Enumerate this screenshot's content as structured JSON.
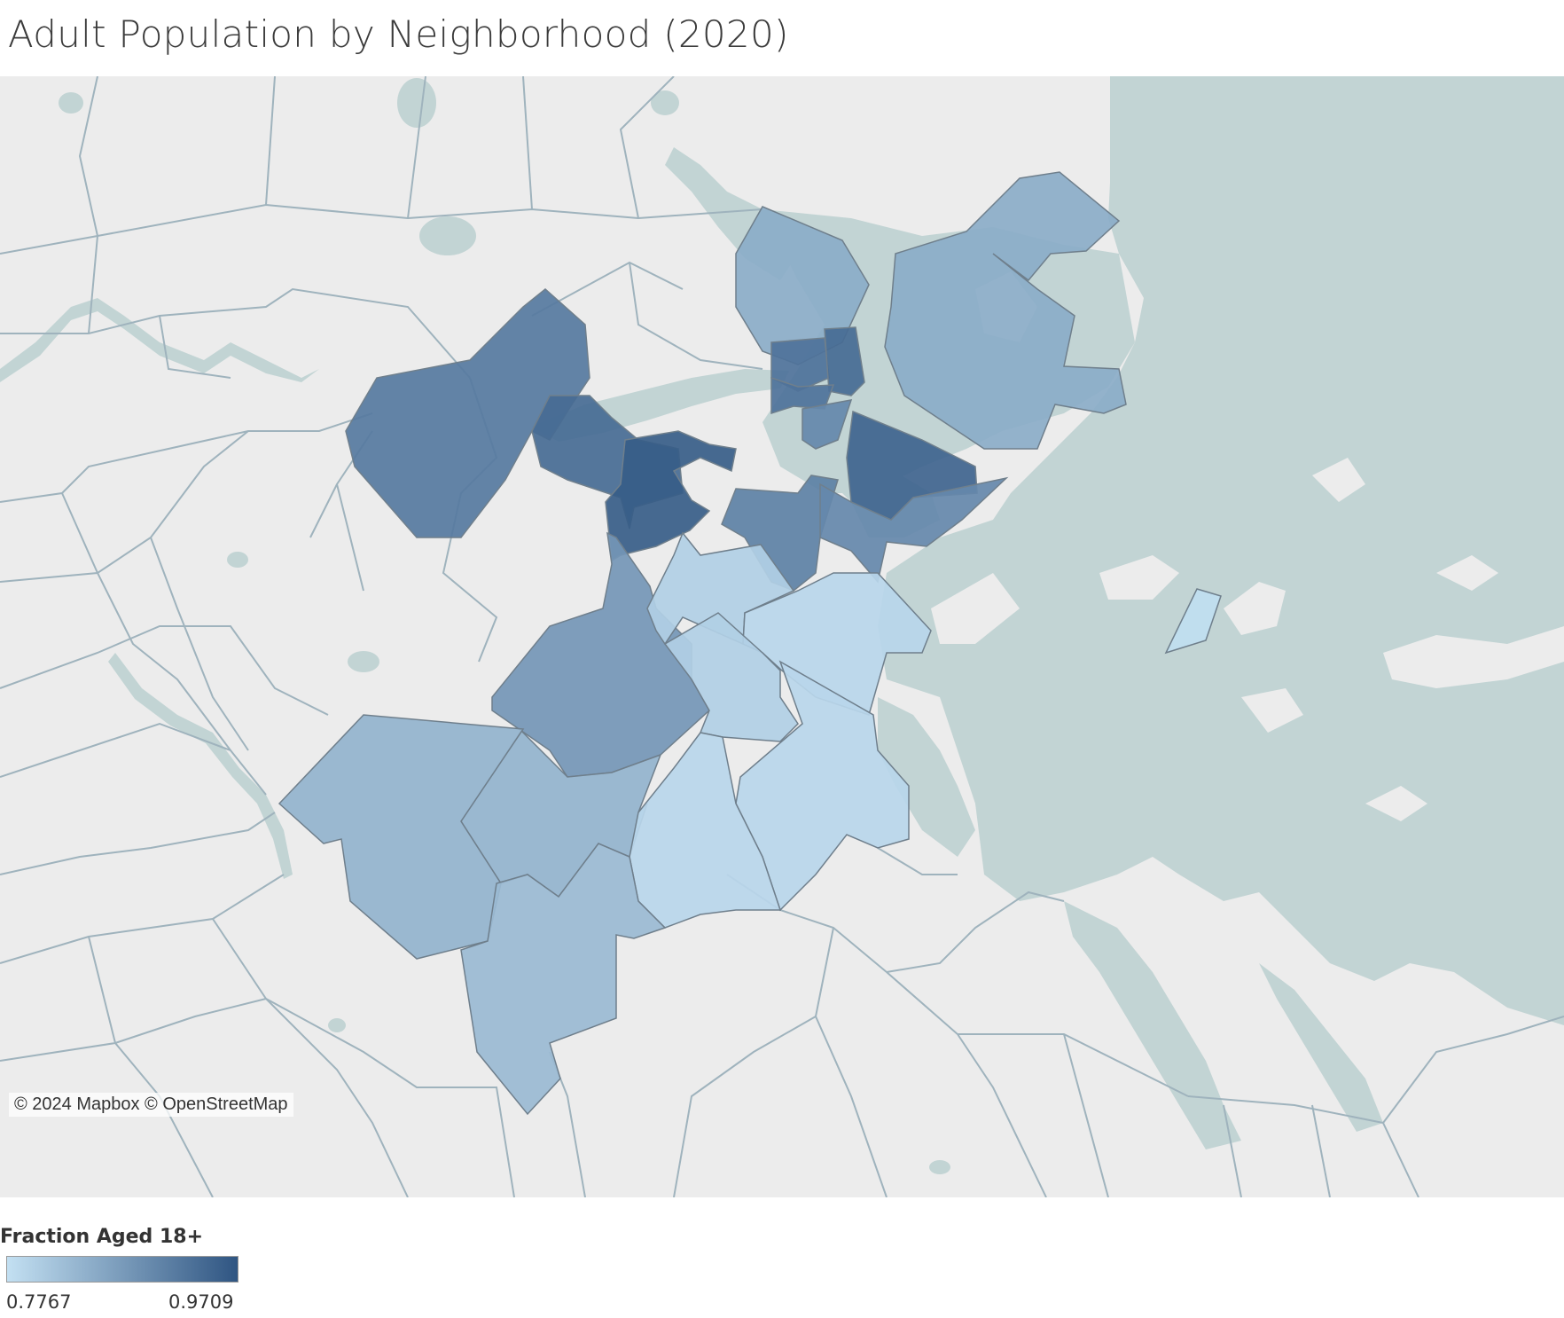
{
  "title": "Adult Population by Neighborhood (2020)",
  "attribution": "© 2024 Mapbox © OpenStreetMap",
  "legend": {
    "title": "Fraction Aged 18+",
    "min_label": "0.7767",
    "max_label": "0.9709",
    "min": 0.7767,
    "max": 0.9709,
    "color_low": "#c3e0f2",
    "color_high": "#2f5582"
  },
  "colors": {
    "land": "#ececec",
    "water": "#c2d4d4",
    "boundary": "#9fb3bd",
    "neighborhood_stroke": "#6f7f8c"
  },
  "neighborhoods": [
    {
      "id": "charlestown",
      "value": 0.85
    },
    {
      "id": "east-boston",
      "value": 0.85
    },
    {
      "id": "allston-brighton",
      "value": 0.92
    },
    {
      "id": "fenway-kenmore",
      "value": 0.94
    },
    {
      "id": "back-bay",
      "value": 0.96
    },
    {
      "id": "beacon-hill",
      "value": 0.93
    },
    {
      "id": "north-end",
      "value": 0.94
    },
    {
      "id": "west-end",
      "value": 0.93
    },
    {
      "id": "downtown",
      "value": 0.9
    },
    {
      "id": "south-boston-waterfront",
      "value": 0.95
    },
    {
      "id": "south-end",
      "value": 0.91
    },
    {
      "id": "south-boston",
      "value": 0.9
    },
    {
      "id": "jamaica-plain",
      "value": 0.88
    },
    {
      "id": "roxbury",
      "value": 0.8
    },
    {
      "id": "dorchester-north",
      "value": 0.79
    },
    {
      "id": "dorchester-center",
      "value": 0.8
    },
    {
      "id": "dorchester-south",
      "value": 0.79
    },
    {
      "id": "roslindale",
      "value": 0.84
    },
    {
      "id": "west-roxbury",
      "value": 0.84
    },
    {
      "id": "mattapan",
      "value": 0.79
    },
    {
      "id": "hyde-park",
      "value": 0.83
    },
    {
      "id": "harbor-islands",
      "value": 0.78
    }
  ]
}
